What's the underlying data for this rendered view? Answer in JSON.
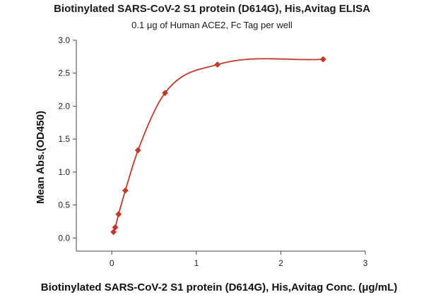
{
  "colors": {
    "series": "#c0392b",
    "axis": "#444444"
  },
  "chart_data": {
    "type": "scatter",
    "title": "Biotinylated SARS-CoV-2 S1 protein (D614G), His,Avitag ELISA",
    "subtitle": "0.1 μg of Human ACE2, Fc Tag per well",
    "xlabel": "Biotinylated SARS-CoV-2 S1 protein (D614G), His,Avitag Conc. (μg/mL)",
    "ylabel": "Mean Abs.(OD450)",
    "xlim": [
      -0.42,
      3.0
    ],
    "ylim": [
      -0.2,
      3.0
    ],
    "x_ticks": [
      0,
      1,
      2,
      3
    ],
    "x_tick_labels": [
      "0",
      "1",
      "2",
      "3"
    ],
    "y_ticks": [
      0.0,
      0.5,
      1.0,
      1.5,
      2.0,
      2.5,
      3.0
    ],
    "y_tick_labels": [
      "0.0",
      "0.5",
      "1.0",
      "1.5",
      "2.0",
      "2.5",
      "3.0"
    ],
    "grid": false,
    "series": [
      {
        "marker": "diamond",
        "fit": "curve",
        "points": [
          {
            "x": 0.02,
            "y": 0.09
          },
          {
            "x": 0.04,
            "y": 0.16
          },
          {
            "x": 0.08,
            "y": 0.36
          },
          {
            "x": 0.16,
            "y": 0.72
          },
          {
            "x": 0.31,
            "y": 1.33
          },
          {
            "x": 0.63,
            "y": 2.2
          },
          {
            "x": 1.25,
            "y": 2.63
          },
          {
            "x": 2.5,
            "y": 2.71
          }
        ]
      }
    ]
  }
}
